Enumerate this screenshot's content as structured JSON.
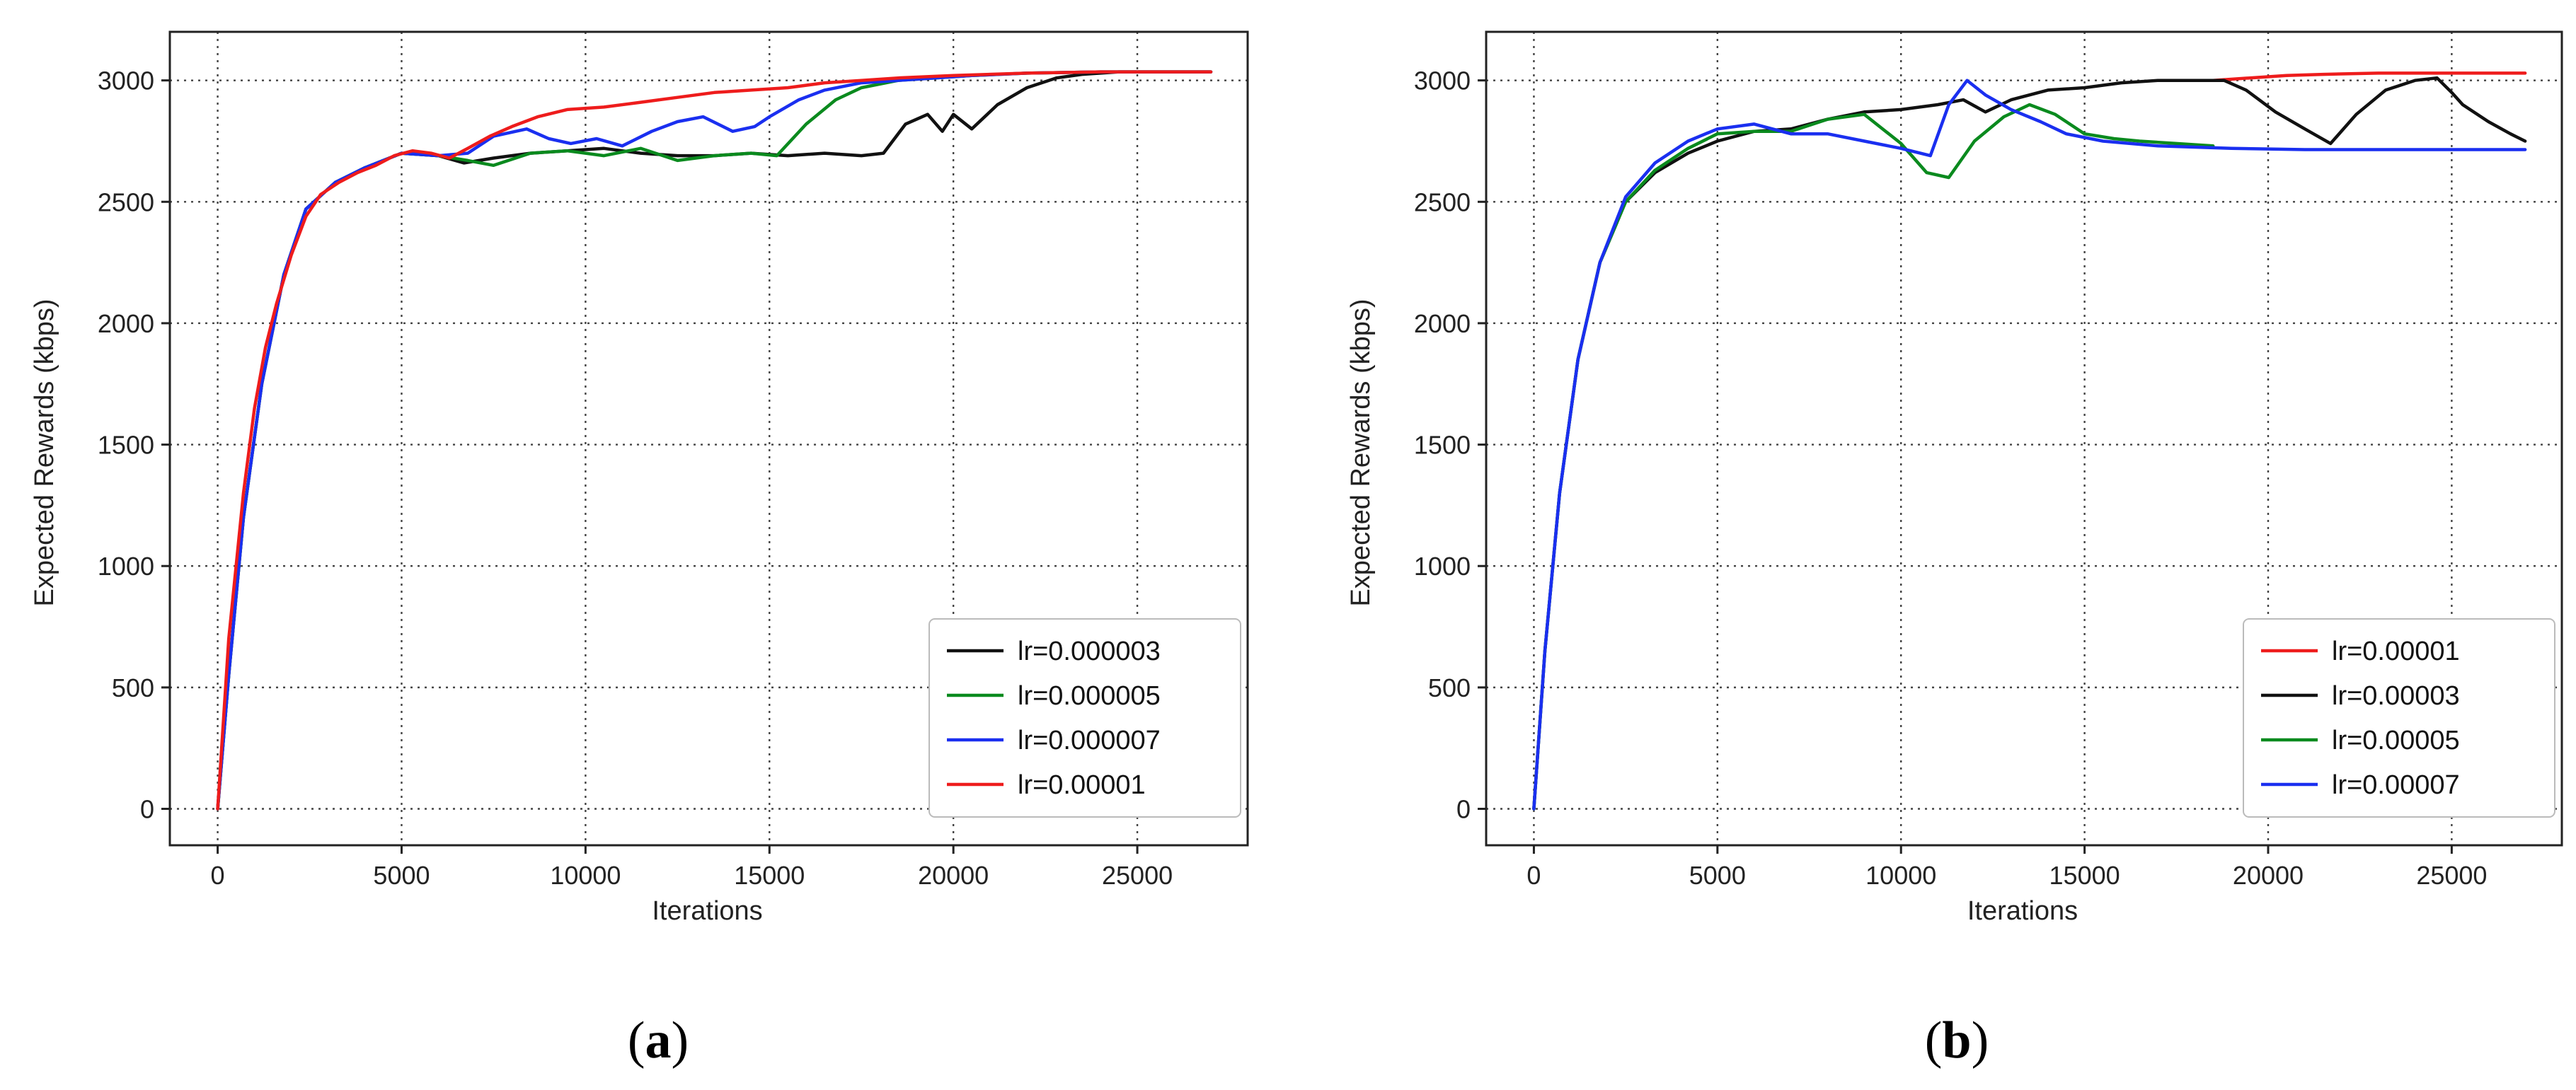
{
  "colors": {
    "black": "#111111",
    "green": "#0a8a1e",
    "blue": "#1a2ff0",
    "red": "#ee1c1c"
  },
  "chart_data": [
    {
      "type": "line",
      "caption_open": "(",
      "caption_letter": "a",
      "caption_close": ")",
      "xlabel": "Iterations",
      "ylabel": "Expected Rewards (kbps)",
      "xlim": [
        -1300,
        28000
      ],
      "ylim": [
        -150,
        3200
      ],
      "xticks": [
        0,
        5000,
        10000,
        15000,
        20000,
        25000
      ],
      "yticks": [
        0,
        500,
        1000,
        1500,
        2000,
        2500,
        3000
      ],
      "grid": true,
      "legend_position": "lower-right",
      "series": [
        {
          "name": "lr=0.000003",
          "color": "#111111",
          "x": [
            0,
            300,
            700,
            1200,
            1800,
            2400,
            3200,
            4000,
            5000,
            6000,
            6700,
            7500,
            8500,
            9500,
            10500,
            11500,
            12500,
            13500,
            14500,
            15500,
            16500,
            17500,
            18100,
            18700,
            19300,
            19700,
            20000,
            20500,
            21200,
            22000,
            22800,
            23500,
            24500,
            25500,
            27000
          ],
          "y": [
            0,
            550,
            1200,
            1750,
            2200,
            2470,
            2580,
            2640,
            2700,
            2690,
            2660,
            2680,
            2700,
            2710,
            2720,
            2700,
            2690,
            2690,
            2700,
            2690,
            2700,
            2690,
            2700,
            2820,
            2860,
            2790,
            2860,
            2800,
            2900,
            2970,
            3010,
            3025,
            3035,
            3035,
            3035
          ]
        },
        {
          "name": "lr=0.000005",
          "color": "#0a8a1e",
          "x": [
            0,
            300,
            700,
            1200,
            1800,
            2400,
            3200,
            4000,
            5000,
            6000,
            6800,
            7500,
            8500,
            9500,
            10500,
            11500,
            12500,
            13500,
            14500,
            15200,
            16000,
            16800,
            17500,
            18500,
            19500,
            20500,
            22000,
            24000,
            27000
          ],
          "y": [
            0,
            550,
            1200,
            1750,
            2200,
            2470,
            2580,
            2640,
            2700,
            2690,
            2670,
            2650,
            2700,
            2710,
            2690,
            2720,
            2670,
            2690,
            2700,
            2690,
            2820,
            2920,
            2970,
            3000,
            3010,
            3020,
            3030,
            3035,
            3035
          ]
        },
        {
          "name": "lr=0.000007",
          "color": "#1a2ff0",
          "x": [
            0,
            300,
            700,
            1200,
            1800,
            2400,
            3200,
            4000,
            5000,
            6000,
            6800,
            7500,
            8400,
            9000,
            9600,
            10300,
            11000,
            11800,
            12500,
            13200,
            14000,
            14600,
            15000,
            15800,
            16500,
            17500,
            18500,
            19500,
            20500,
            22000,
            24000,
            27000
          ],
          "y": [
            0,
            550,
            1200,
            1750,
            2200,
            2470,
            2580,
            2640,
            2700,
            2690,
            2700,
            2770,
            2800,
            2760,
            2740,
            2760,
            2730,
            2790,
            2830,
            2850,
            2790,
            2810,
            2850,
            2920,
            2960,
            2990,
            3000,
            3010,
            3020,
            3030,
            3035,
            3035
          ]
        },
        {
          "name": "lr=0.00001",
          "color": "#ee1c1c",
          "x": [
            0,
            150,
            300,
            500,
            700,
            1000,
            1300,
            1600,
            2000,
            2400,
            2800,
            3300,
            3800,
            4300,
            4800,
            5300,
            5800,
            6300,
            6800,
            7400,
            8000,
            8700,
            9500,
            10500,
            11500,
            12500,
            13500,
            14500,
            15500,
            16500,
            17500,
            18500,
            20000,
            22000,
            24000,
            27000
          ],
          "y": [
            0,
            350,
            700,
            1000,
            1300,
            1650,
            1900,
            2080,
            2280,
            2440,
            2530,
            2580,
            2620,
            2650,
            2690,
            2710,
            2700,
            2680,
            2720,
            2770,
            2810,
            2850,
            2880,
            2890,
            2910,
            2930,
            2950,
            2960,
            2970,
            2990,
            3000,
            3010,
            3020,
            3030,
            3035,
            3035
          ]
        }
      ]
    },
    {
      "type": "line",
      "caption_open": "(",
      "caption_letter": "b",
      "caption_close": ")",
      "xlabel": "Iterations",
      "ylabel": "Expected Rewards (kbps)",
      "xlim": [
        -1300,
        28000
      ],
      "ylim": [
        -150,
        3200
      ],
      "xticks": [
        0,
        5000,
        10000,
        15000,
        20000,
        25000
      ],
      "yticks": [
        0,
        500,
        1000,
        1500,
        2000,
        2500,
        3000
      ],
      "grid": true,
      "legend_position": "lower-right",
      "series": [
        {
          "name": "lr=0.00001",
          "color": "#ee1c1c",
          "x": [
            18500,
            19500,
            20500,
            21500,
            23000,
            25000,
            27000
          ],
          "y": [
            3000,
            3010,
            3020,
            3025,
            3030,
            3030,
            3030
          ]
        },
        {
          "name": "lr=0.00003",
          "color": "#111111",
          "x": [
            0,
            300,
            700,
            1200,
            1800,
            2500,
            3300,
            4200,
            5000,
            6000,
            7000,
            8000,
            9000,
            10000,
            11000,
            11700,
            12300,
            13000,
            14000,
            15000,
            16000,
            17000,
            18000,
            18800,
            19400,
            20200,
            21000,
            21700,
            22400,
            23200,
            24000,
            24600,
            25000,
            25300,
            26000,
            26600,
            27000
          ],
          "y": [
            0,
            650,
            1300,
            1850,
            2250,
            2500,
            2620,
            2700,
            2750,
            2790,
            2800,
            2840,
            2870,
            2880,
            2900,
            2920,
            2870,
            2920,
            2960,
            2970,
            2990,
            3000,
            3000,
            3000,
            2960,
            2870,
            2800,
            2740,
            2860,
            2960,
            3000,
            3010,
            2950,
            2900,
            2830,
            2780,
            2750
          ]
        },
        {
          "name": "lr=0.00005",
          "color": "#0a8a1e",
          "x": [
            0,
            300,
            700,
            1200,
            1800,
            2500,
            3300,
            4200,
            5000,
            6000,
            7000,
            8000,
            9000,
            10000,
            10700,
            11300,
            12000,
            12800,
            13500,
            14200,
            15000,
            15800,
            16500,
            17500,
            18500
          ],
          "y": [
            0,
            650,
            1300,
            1850,
            2250,
            2500,
            2630,
            2720,
            2780,
            2790,
            2790,
            2840,
            2860,
            2740,
            2620,
            2600,
            2750,
            2850,
            2900,
            2860,
            2780,
            2760,
            2750,
            2740,
            2730
          ]
        },
        {
          "name": "lr=0.00007",
          "color": "#1a2ff0",
          "x": [
            0,
            300,
            700,
            1200,
            1800,
            2500,
            3300,
            4200,
            5000,
            6000,
            7000,
            8000,
            9000,
            10000,
            10800,
            11300,
            11800,
            12300,
            13000,
            13800,
            14500,
            15500,
            17000,
            19000,
            21000,
            24000,
            27000
          ],
          "y": [
            0,
            650,
            1300,
            1850,
            2250,
            2520,
            2660,
            2750,
            2800,
            2820,
            2780,
            2780,
            2750,
            2720,
            2690,
            2900,
            3000,
            2940,
            2880,
            2830,
            2780,
            2750,
            2730,
            2720,
            2715,
            2715,
            2715
          ]
        }
      ]
    }
  ]
}
